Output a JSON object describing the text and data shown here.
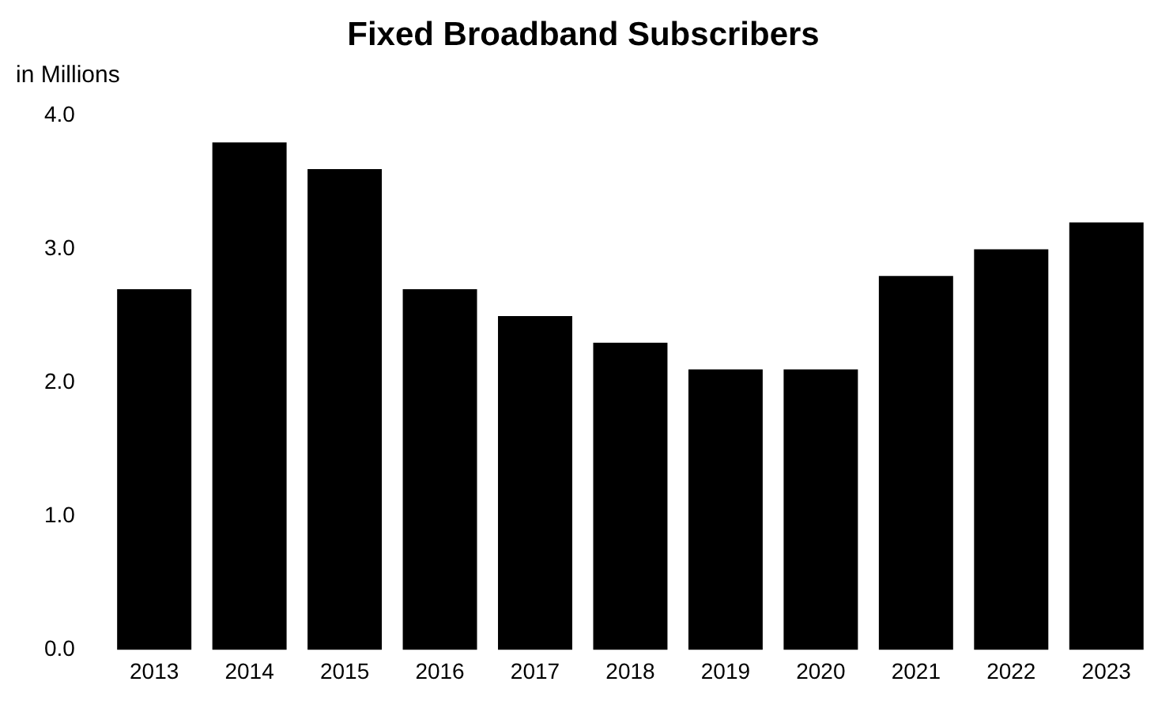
{
  "chart_data": {
    "type": "bar",
    "title": "Fixed Broadband Subscribers",
    "ylabel": "in Millions",
    "categories": [
      "2013",
      "2014",
      "2015",
      "2016",
      "2017",
      "2018",
      "2019",
      "2020",
      "2021",
      "2022",
      "2023"
    ],
    "values": [
      2.7,
      3.8,
      3.6,
      2.7,
      2.5,
      2.3,
      2.1,
      2.1,
      2.8,
      3.0,
      3.2
    ],
    "color": "#000000",
    "ylim": [
      0,
      4
    ],
    "yticks": [
      {
        "value": 0,
        "label": "0.0"
      },
      {
        "value": 1,
        "label": "1.0"
      },
      {
        "value": 2,
        "label": "2.0"
      },
      {
        "value": 3,
        "label": "3.0"
      },
      {
        "value": 4,
        "label": "4.0"
      }
    ],
    "grid": false
  }
}
